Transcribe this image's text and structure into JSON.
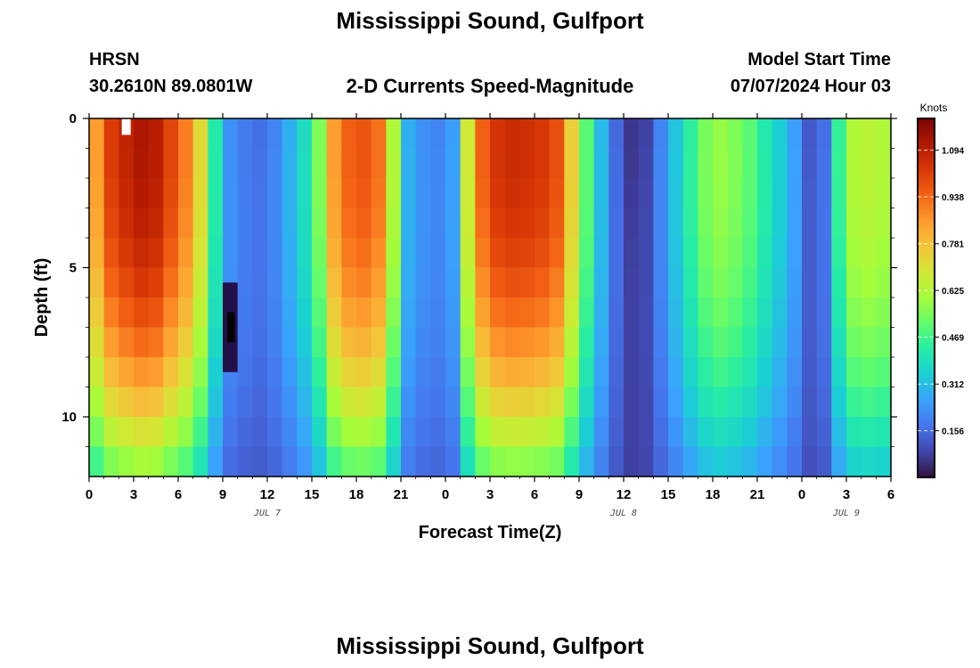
{
  "page": {
    "title_top": "Mississippi Sound, Gulfport",
    "title_bottom": "Mississippi Sound, Gulfport",
    "station_id": "HRSN",
    "station_coords": "30.2610N  89.0801W",
    "chart_subtitle": "2-D Currents Speed-Magnitude",
    "model_start_label": "Model Start Time",
    "model_start_value": "07/07/2024 Hour 03"
  },
  "colors": {
    "scale": [
      "#30123b",
      "#4145ab",
      "#4675ed",
      "#39a2fc",
      "#1bcfd4",
      "#24eca6",
      "#61fc6c",
      "#a4fc3b",
      "#d1e834",
      "#f3c63a",
      "#fe9b2d",
      "#f36315",
      "#d93806",
      "#b11901",
      "#7a0402"
    ]
  },
  "chart_data": {
    "type": "heatmap",
    "title": "2-D Currents Speed-Magnitude",
    "xlabel": "Forecast Time(Z)",
    "ylabel": "Depth (ft)",
    "colorbar_label": "Knots",
    "x_tick_labels": [
      "0",
      "3",
      "6",
      "9",
      "12",
      "15",
      "18",
      "21",
      "0",
      "3",
      "6",
      "9",
      "12",
      "15",
      "18",
      "21",
      "0",
      "3",
      "6"
    ],
    "x_ticks_hours": [
      0,
      3,
      6,
      9,
      12,
      15,
      18,
      21,
      24,
      27,
      30,
      33,
      36,
      39,
      42,
      45,
      48,
      51,
      54
    ],
    "x_range_hours": [
      0,
      54
    ],
    "date_labels": [
      {
        "text": "JUL 7",
        "hour": 12
      },
      {
        "text": "JUL 8",
        "hour": 36
      },
      {
        "text": "JUL 9",
        "hour": 51
      }
    ],
    "y_tick_labels": [
      "0",
      "5",
      "10"
    ],
    "y_ticks": [
      0,
      5,
      10
    ],
    "y_range_ft": [
      0,
      12
    ],
    "y_inverted": true,
    "colorbar_ticks": [
      "0.156",
      "0.312",
      "0.469",
      "0.625",
      "0.781",
      "0.938",
      "1.094"
    ],
    "colorbar_tick_values": [
      0.156,
      0.312,
      0.469,
      0.625,
      0.781,
      0.938,
      1.094
    ],
    "value_range_knots": [
      0,
      1.2
    ],
    "depth_layers": 12,
    "time_step_hours": 1,
    "surface_speed_profile_knots": [
      0.85,
      1.02,
      1.08,
      1.12,
      1.1,
      1.0,
      0.9,
      0.72,
      0.42,
      0.22,
      0.18,
      0.16,
      0.2,
      0.28,
      0.38,
      0.55,
      0.85,
      0.95,
      0.97,
      0.92,
      0.62,
      0.28,
      0.22,
      0.2,
      0.25,
      0.68,
      0.95,
      1.04,
      1.06,
      1.05,
      1.03,
      0.98,
      0.75,
      0.5,
      0.3,
      0.15,
      0.06,
      0.08,
      0.2,
      0.32,
      0.44,
      0.54,
      0.58,
      0.55,
      0.5,
      0.42,
      0.34,
      0.25,
      0.12,
      0.16,
      0.45,
      0.62,
      0.64,
      0.62,
      0.6
    ],
    "annotations": [
      "white patch near hour 2, depth 0",
      "dark minimum near hour 9-10, depth 6-8 ft"
    ]
  }
}
